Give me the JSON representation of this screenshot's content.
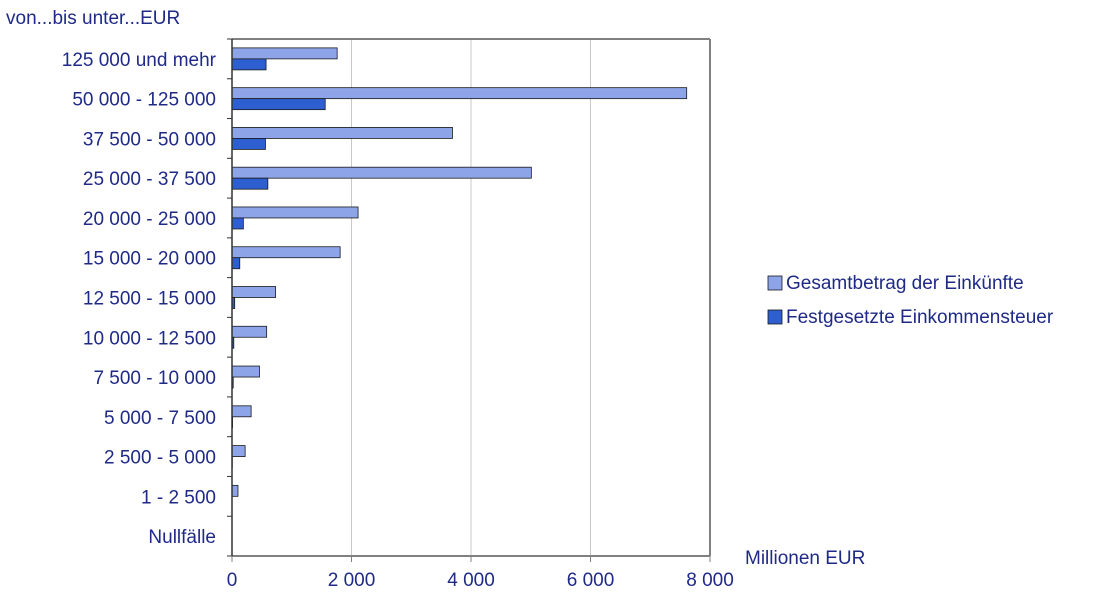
{
  "chart_data": {
    "type": "bar",
    "orientation": "horizontal",
    "ylabel": "von...bis unter...EUR",
    "xlabel": "Millionen EUR",
    "categories": [
      "Nullfälle",
      "1  -  2 500",
      "2 500  -  5 000",
      "5 000  -  7 500",
      "7 500  -  10 000",
      "10 000  -  12 500",
      "12 500  -  15 000",
      "15 000  -  20 000",
      "20 000  -  25 000",
      "25 000  -  37 500",
      "37 500  -  50 000",
      "50 000  - 125 000",
      "125 000  und mehr"
    ],
    "series": [
      {
        "name": "Gesamtbetrag der Einkünfte",
        "color": "#8ea4e8",
        "values": [
          0,
          100,
          220,
          320,
          460,
          580,
          730,
          1810,
          2110,
          5010,
          3690,
          7610,
          1760
        ]
      },
      {
        "name": "Festgesetzte Einkommensteuer",
        "color": "#2e5fd1",
        "values": [
          0,
          0,
          5,
          10,
          20,
          30,
          45,
          130,
          190,
          600,
          560,
          1560,
          570
        ]
      }
    ],
    "xlim": [
      0,
      8000
    ],
    "x_ticks": [
      {
        "value": 0,
        "label": "0"
      },
      {
        "value": 2000,
        "label": "2 000"
      },
      {
        "value": 4000,
        "label": "4 000"
      },
      {
        "value": 6000,
        "label": "6 000"
      },
      {
        "value": 8000,
        "label": "8 000"
      }
    ],
    "grid": true,
    "legend_position": "right"
  }
}
